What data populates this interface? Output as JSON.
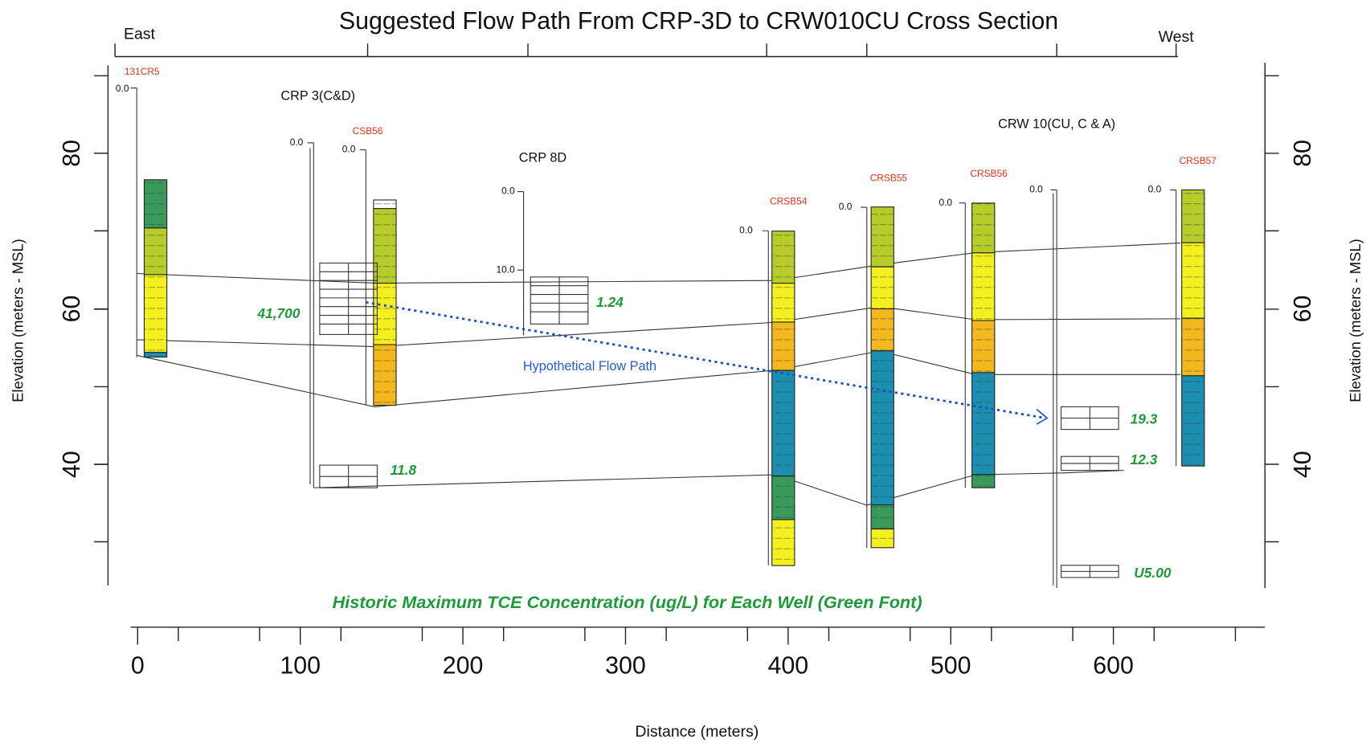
{
  "title": "Suggested Flow Path From CRP-3D to CRW010CU Cross Section",
  "east": "East",
  "west": "West",
  "y_axis_label": "Elevation (meters - MSL)",
  "y2_axis_label": "Elevation (meters - MSL)",
  "x_axis_label": "Distance (meters)",
  "yticks": [
    80,
    60,
    40
  ],
  "xticks": [
    0,
    100,
    200,
    300,
    400,
    500,
    600
  ],
  "caption": "Historic Maximum TCE Concentration (ug/L) for Each Well (Green Font)",
  "flow_path_label": "Hypothetical Flow Path",
  "well_groups": [
    {
      "label": "CRP 3(C&D)"
    },
    {
      "label": "CRP 8D"
    },
    {
      "label": "CRW 10(CU, C & A)"
    }
  ],
  "sticks": [
    {
      "label": "0.0"
    },
    {
      "label": "0.0"
    },
    {
      "label": "0.0"
    },
    {
      "label": "0.0",
      "label2": "10.0"
    },
    {
      "label": "0.0"
    },
    {
      "label": "0.0"
    },
    {
      "label": "0.0"
    },
    {
      "label": "0.0"
    },
    {
      "label": "0.0"
    }
  ],
  "wells": [
    {
      "name": "131CR5",
      "distance": 11,
      "layers": [
        {
          "color": "#3a9a5c",
          "top": 76.6,
          "bottom": 70.4
        },
        {
          "color": "#b5cc2a",
          "top": 70.4,
          "bottom": 64.4
        },
        {
          "color": "#f4f020",
          "top": 64.4,
          "bottom": 54.4
        },
        {
          "color": "#1c8fb0",
          "top": 54.4,
          "bottom": 53.8
        }
      ]
    },
    {
      "name": "CSB56",
      "distance": 152,
      "layers": [
        {
          "color": "#ffffff",
          "top": 74,
          "bottom": 72.9
        },
        {
          "color": "#b5cc2a",
          "top": 72.9,
          "bottom": 63.3
        },
        {
          "color": "#f4f020",
          "top": 63.3,
          "bottom": 55.4
        },
        {
          "color": "#f2b81e",
          "top": 55.4,
          "bottom": 47.6
        }
      ]
    },
    {
      "name": "CRSB54",
      "distance": 397,
      "layers": [
        {
          "color": "#b5cc2a",
          "top": 70,
          "bottom": 63.3
        },
        {
          "color": "#f4f020",
          "top": 63.3,
          "bottom": 58.3
        },
        {
          "color": "#f2b81e",
          "top": 58.3,
          "bottom": 52.1
        },
        {
          "color": "#1c8fb0",
          "top": 52.1,
          "bottom": 38.5
        },
        {
          "color": "#3a9a5c",
          "top": 38.5,
          "bottom": 32.9
        },
        {
          "color": "#f4f020",
          "top": 32.9,
          "bottom": 27
        }
      ]
    },
    {
      "name": "CRSB55",
      "distance": 458,
      "layers": [
        {
          "color": "#b5cc2a",
          "top": 73.1,
          "bottom": 65.4
        },
        {
          "color": "#f4f020",
          "top": 65.4,
          "bottom": 60
        },
        {
          "color": "#f2b81e",
          "top": 60,
          "bottom": 54.6
        },
        {
          "color": "#1c8fb0",
          "top": 54.6,
          "bottom": 34.8
        },
        {
          "color": "#3a9a5c",
          "top": 34.8,
          "bottom": 31.7
        },
        {
          "color": "#f4f020",
          "top": 31.7,
          "bottom": 29.3
        }
      ]
    },
    {
      "name": "CRSB56",
      "distance": 520,
      "layers": [
        {
          "color": "#b5cc2a",
          "top": 73.6,
          "bottom": 67.2
        },
        {
          "color": "#f4f020",
          "top": 67.2,
          "bottom": 58.5
        },
        {
          "color": "#f2b81e",
          "top": 58.5,
          "bottom": 51.8
        },
        {
          "color": "#1c8fb0",
          "top": 51.8,
          "bottom": 38.7
        },
        {
          "color": "#3a9a5c",
          "top": 38.7,
          "bottom": 37
        }
      ]
    },
    {
      "name": "CRSB57",
      "distance": 649,
      "layers": [
        {
          "color": "#b5cc2a",
          "top": 75.3,
          "bottom": 68.5
        },
        {
          "color": "#f4f020",
          "top": 68.5,
          "bottom": 58.8
        },
        {
          "color": "#f2b81e",
          "top": 58.8,
          "bottom": 51.4
        },
        {
          "color": "#1c8fb0",
          "top": 51.4,
          "bottom": 39.8
        }
      ]
    }
  ],
  "concentrations": [
    "41,700",
    "1.24",
    "11.8",
    "19.3",
    "12.3",
    "U5.00"
  ]
}
